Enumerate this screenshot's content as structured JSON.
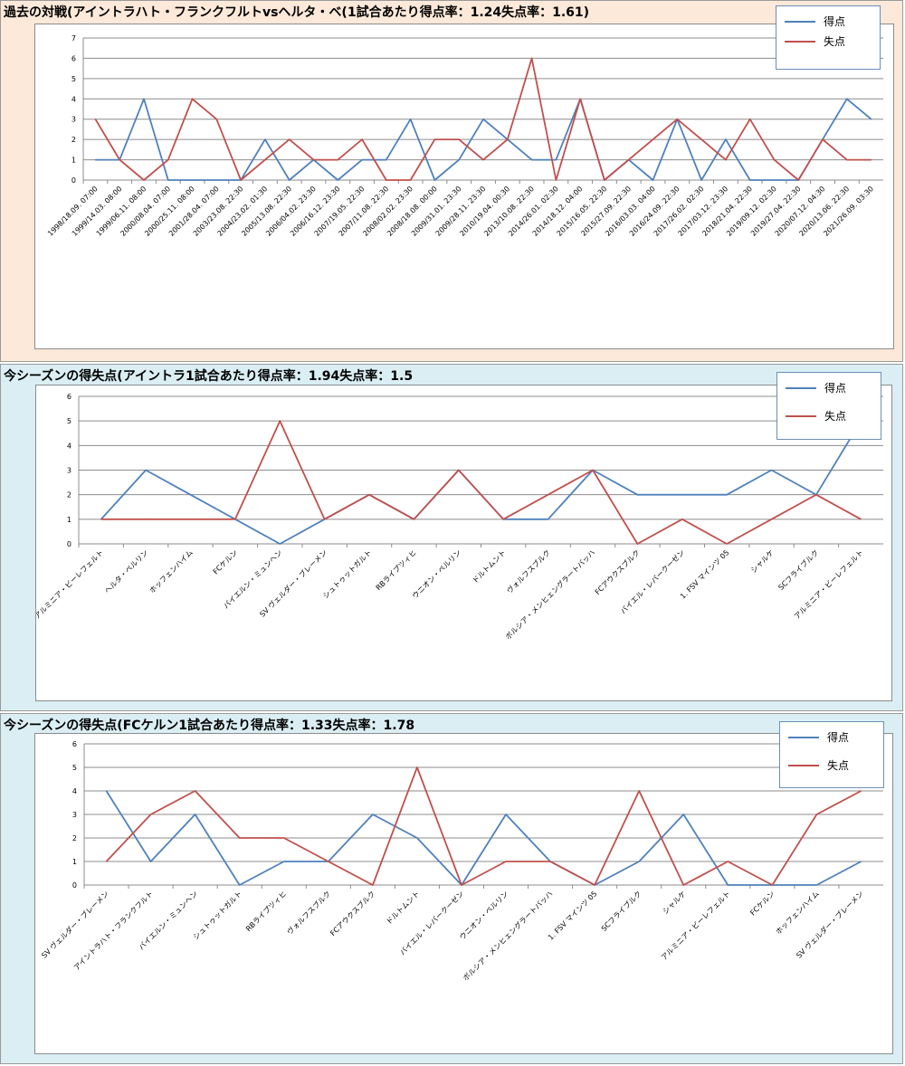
{
  "colors": {
    "goals": "#4f81bd",
    "conceded": "#c0504d",
    "panel1_bg": "#fde9d9",
    "panel_bg": "#daeef3",
    "grid": "#8c8c8c"
  },
  "charts": [
    {
      "title": "過去の対戦(アイントラハト・フランクフルトvsヘルタ・ベ(1試合あたり得点率：1.24失点率：1.61)",
      "legend": [
        "得点",
        "失点"
      ]
    },
    {
      "title": "今シーズンの得失点(アイントラ1試合あたり得点率：1.94失点率：1.5",
      "legend": [
        "得点",
        "失点"
      ]
    },
    {
      "title": "今シーズンの得失点(FCケルン1試合あたり得点率：1.33失点率：1.78",
      "legend": [
        "得点",
        "失点"
      ]
    }
  ],
  "chart_data": [
    {
      "type": "line",
      "title": "過去の対戦(アイントラハト・フランクフルトvsヘルタ・ベ(1試合あたり得点率：1.24失点率：1.61)",
      "ylim": [
        0,
        7
      ],
      "yticks": [
        0,
        1,
        2,
        3,
        4,
        5,
        6,
        7
      ],
      "grid": true,
      "legend_position": "top-right",
      "categories": [
        "1998/18.09. 07:00",
        "1999/14.03. 08:00",
        "1999/06.11. 08:00",
        "2000/08.04. 07:00",
        "2000/25.11. 08:00",
        "2001/28.04. 07:00",
        "2003/23.08. 22:30",
        "2004/23.02. 01:30",
        "2005/13.08. 22:30",
        "2006/04.02. 23:30",
        "2006/16.12. 23:30",
        "2007/19.05. 22:30",
        "2007/11.08. 22:30",
        "2008/02.02. 23:30",
        "2008/18.08. 00:00",
        "2009/31.01. 23:30",
        "2009/28.11. 23:30",
        "2010/19.04. 00:30",
        "2013/10.08. 22:30",
        "2014/26.01. 02:30",
        "2014/18.12. 04:00",
        "2015/16.05. 22:30",
        "2015/27.09. 22:30",
        "2016/03.03. 04:00",
        "2016/24.09. 22:30",
        "2017/26.02. 02:30",
        "2017/03.12. 23:30",
        "2018/21.04. 22:30",
        "2019/09.12. 02:30",
        "2019/27.04. 22:30",
        "2020/07.12. 04:30",
        "2020/13.06. 22:30",
        "2021/26.09. 03:30"
      ],
      "series": [
        {
          "name": "得点",
          "color": "#4f81bd",
          "values": [
            1,
            1,
            4,
            0,
            0,
            0,
            0,
            2,
            0,
            1,
            0,
            1,
            1,
            3,
            0,
            1,
            3,
            2,
            1,
            1,
            4,
            0,
            1,
            0,
            3,
            0,
            2,
            0,
            0,
            0,
            2,
            4,
            3
          ]
        },
        {
          "name": "失点",
          "color": "#c0504d",
          "values": [
            3,
            1,
            0,
            1,
            4,
            3,
            0,
            1,
            2,
            1,
            1,
            2,
            0,
            0,
            2,
            2,
            1,
            2,
            6,
            0,
            4,
            0,
            1,
            2,
            3,
            2,
            1,
            3,
            1,
            0,
            2,
            1,
            1
          ]
        }
      ]
    },
    {
      "type": "line",
      "title": "今シーズンの得失点(アイントラ1試合あたり得点率：1.94失点率：1.5",
      "ylim": [
        0,
        6
      ],
      "yticks": [
        0,
        1,
        2,
        3,
        4,
        5,
        6
      ],
      "grid": true,
      "legend_position": "top-right",
      "categories": [
        "アルミニア・ビーレフェルト",
        "ヘルタ・ベルリン",
        "ホッフェンハイム",
        "FCケルン",
        "バイエルン・ミュンヘン",
        "SV ヴェルダー・ブレーメン",
        "シュトゥットガルト",
        "RBライプツィヒ",
        "ウニオン・ベルリン",
        "ドルトムント",
        "ヴォルフスブルク",
        "ボルシア・メンヒェングラートバッハ",
        "FCアウクスブルク",
        "バイエル・レバークーゼン",
        "1. FSV マインツ 05",
        "シャルケ",
        "SCフライブルク",
        "アルミニア・ビーレフェルト"
      ],
      "series": [
        {
          "name": "得点",
          "color": "#4f81bd",
          "values": [
            1,
            3,
            2,
            1,
            0,
            1,
            2,
            1,
            3,
            1,
            1,
            3,
            2,
            2,
            2,
            3,
            2,
            5
          ]
        },
        {
          "name": "失点",
          "color": "#c0504d",
          "values": [
            1,
            1,
            1,
            1,
            5,
            1,
            2,
            1,
            3,
            1,
            2,
            3,
            0,
            1,
            0,
            1,
            2,
            1
          ]
        }
      ]
    },
    {
      "type": "line",
      "title": "今シーズンの得失点(FCケルン1試合あたり得点率：1.33失点率：1.78",
      "ylim": [
        0,
        6
      ],
      "yticks": [
        0,
        1,
        2,
        3,
        4,
        5,
        6
      ],
      "grid": true,
      "legend_position": "top-right",
      "categories": [
        "SV ヴェルダー・ブレーメン",
        "アイントラハト・フランクフルト",
        "バイエルン・ミュンヘン",
        "シュトゥットガルト",
        "RBライプツィヒ",
        "ヴォルフスブルク",
        "FCアウクスブルク",
        "ドルトムント",
        "バイエル・レバークーゼン",
        "ウニオン・ベルリン",
        "ボルシア・メンヒェングラートバッハ",
        "1. FSV マインツ 05",
        "SCフライブルク",
        "シャルケ",
        "アルミニア・ビーレフェルト",
        "FCケルン",
        "ホッフェンハイム",
        "SV ヴェルダー・ブレーメン"
      ],
      "series": [
        {
          "name": "得点",
          "color": "#4f81bd",
          "values": [
            4,
            1,
            3,
            0,
            1,
            1,
            3,
            2,
            0,
            3,
            1,
            0,
            1,
            3,
            0,
            0,
            0,
            1
          ]
        },
        {
          "name": "失点",
          "color": "#c0504d",
          "values": [
            1,
            3,
            4,
            2,
            2,
            1,
            0,
            5,
            0,
            1,
            1,
            0,
            4,
            0,
            1,
            0,
            3,
            4
          ]
        }
      ]
    }
  ]
}
